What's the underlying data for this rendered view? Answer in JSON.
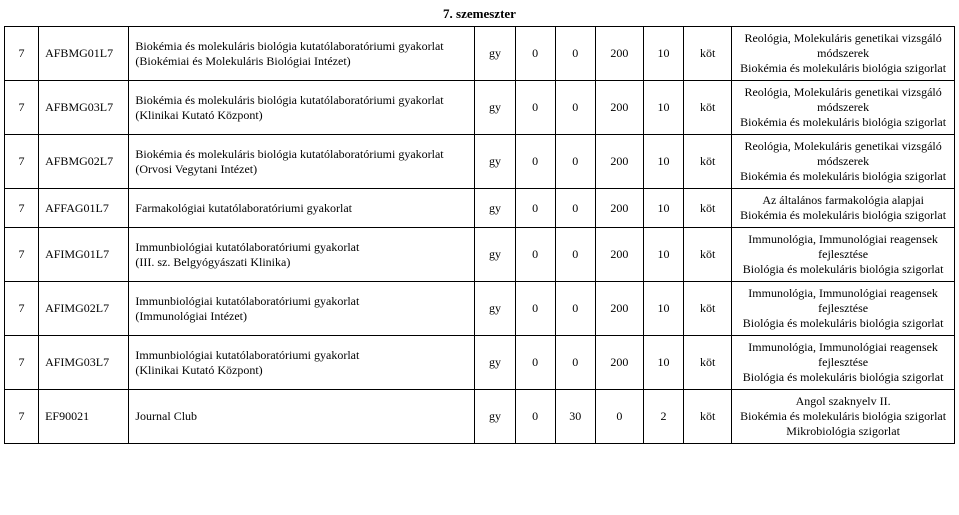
{
  "semester_title": "7. szemeszter",
  "colors": {
    "border": "#000000",
    "background": "#ffffff",
    "text": "#000000"
  },
  "typography": {
    "family": "Garamond/serif",
    "size_pt": 10,
    "title_weight": "bold"
  },
  "columns": [
    "sem",
    "code",
    "name",
    "type",
    "n1",
    "n2",
    "n3",
    "n4",
    "req",
    "prereq"
  ],
  "rows": [
    {
      "sem": "7",
      "code": "AFBMG01L7",
      "name": "Biokémia és molekuláris biológia kutatólaboratóriumi gyakorlat\n(Biokémiai és Molekuláris Biológiai Intézet)",
      "type": "gy",
      "n1": "0",
      "n2": "0",
      "n3": "200",
      "n4": "10",
      "req": "köt",
      "prereq": "Reológia, Molekuláris genetikai vizsgáló módszerek\nBiokémia és molekuláris biológia szigorlat"
    },
    {
      "sem": "7",
      "code": "AFBMG03L7",
      "name": "Biokémia és molekuláris biológia kutatólaboratóriumi gyakorlat\n(Klinikai Kutató Központ)",
      "type": "gy",
      "n1": "0",
      "n2": "0",
      "n3": "200",
      "n4": "10",
      "req": "köt",
      "prereq": "Reológia, Molekuláris genetikai vizsgáló módszerek\nBiokémia és molekuláris biológia szigorlat"
    },
    {
      "sem": "7",
      "code": "AFBMG02L7",
      "name": "Biokémia és molekuláris biológia kutatólaboratóriumi gyakorlat\n(Orvosi Vegytani Intézet)",
      "type": "gy",
      "n1": "0",
      "n2": "0",
      "n3": "200",
      "n4": "10",
      "req": "köt",
      "prereq": "Reológia, Molekuláris genetikai vizsgáló módszerek\nBiokémia és molekuláris biológia szigorlat"
    },
    {
      "sem": "7",
      "code": "AFFAG01L7",
      "name": "Farmakológiai kutatólaboratóriumi gyakorlat",
      "type": "gy",
      "n1": "0",
      "n2": "0",
      "n3": "200",
      "n4": "10",
      "req": "köt",
      "prereq": "Az általános farmakológia alapjai\nBiokémia és molekuláris biológia szigorlat"
    },
    {
      "sem": "7",
      "code": "AFIMG01L7",
      "name": "Immunbiológiai kutatólaboratóriumi gyakorlat\n(III. sz. Belgyógyászati Klinika)",
      "type": "gy",
      "n1": "0",
      "n2": "0",
      "n3": "200",
      "n4": "10",
      "req": "köt",
      "prereq": "Immunológia, Immunológiai reagensek fejlesztése\nBiológia és molekuláris biológia szigorlat"
    },
    {
      "sem": "7",
      "code": "AFIMG02L7",
      "name": "Immunbiológiai kutatólaboratóriumi gyakorlat\n(Immunológiai Intézet)",
      "type": "gy",
      "n1": "0",
      "n2": "0",
      "n3": "200",
      "n4": "10",
      "req": "köt",
      "prereq": "Immunológia, Immunológiai reagensek fejlesztése\nBiológia és molekuláris biológia szigorlat"
    },
    {
      "sem": "7",
      "code": "AFIMG03L7",
      "name": "Immunbiológiai kutatólaboratóriumi gyakorlat\n(Klinikai Kutató Központ)",
      "type": "gy",
      "n1": "0",
      "n2": "0",
      "n3": "200",
      "n4": "10",
      "req": "köt",
      "prereq": "Immunológia, Immunológiai reagensek fejlesztése\nBiológia és molekuláris biológia szigorlat"
    },
    {
      "sem": "7",
      "code": "EF90021",
      "name": "Journal Club",
      "type": "gy",
      "n1": "0",
      "n2": "30",
      "n3": "0",
      "n4": "2",
      "req": "köt",
      "prereq": "Angol szaknyelv II.\nBiokémia és molekuláris biológia szigorlat\nMikrobiológia szigorlat"
    }
  ]
}
